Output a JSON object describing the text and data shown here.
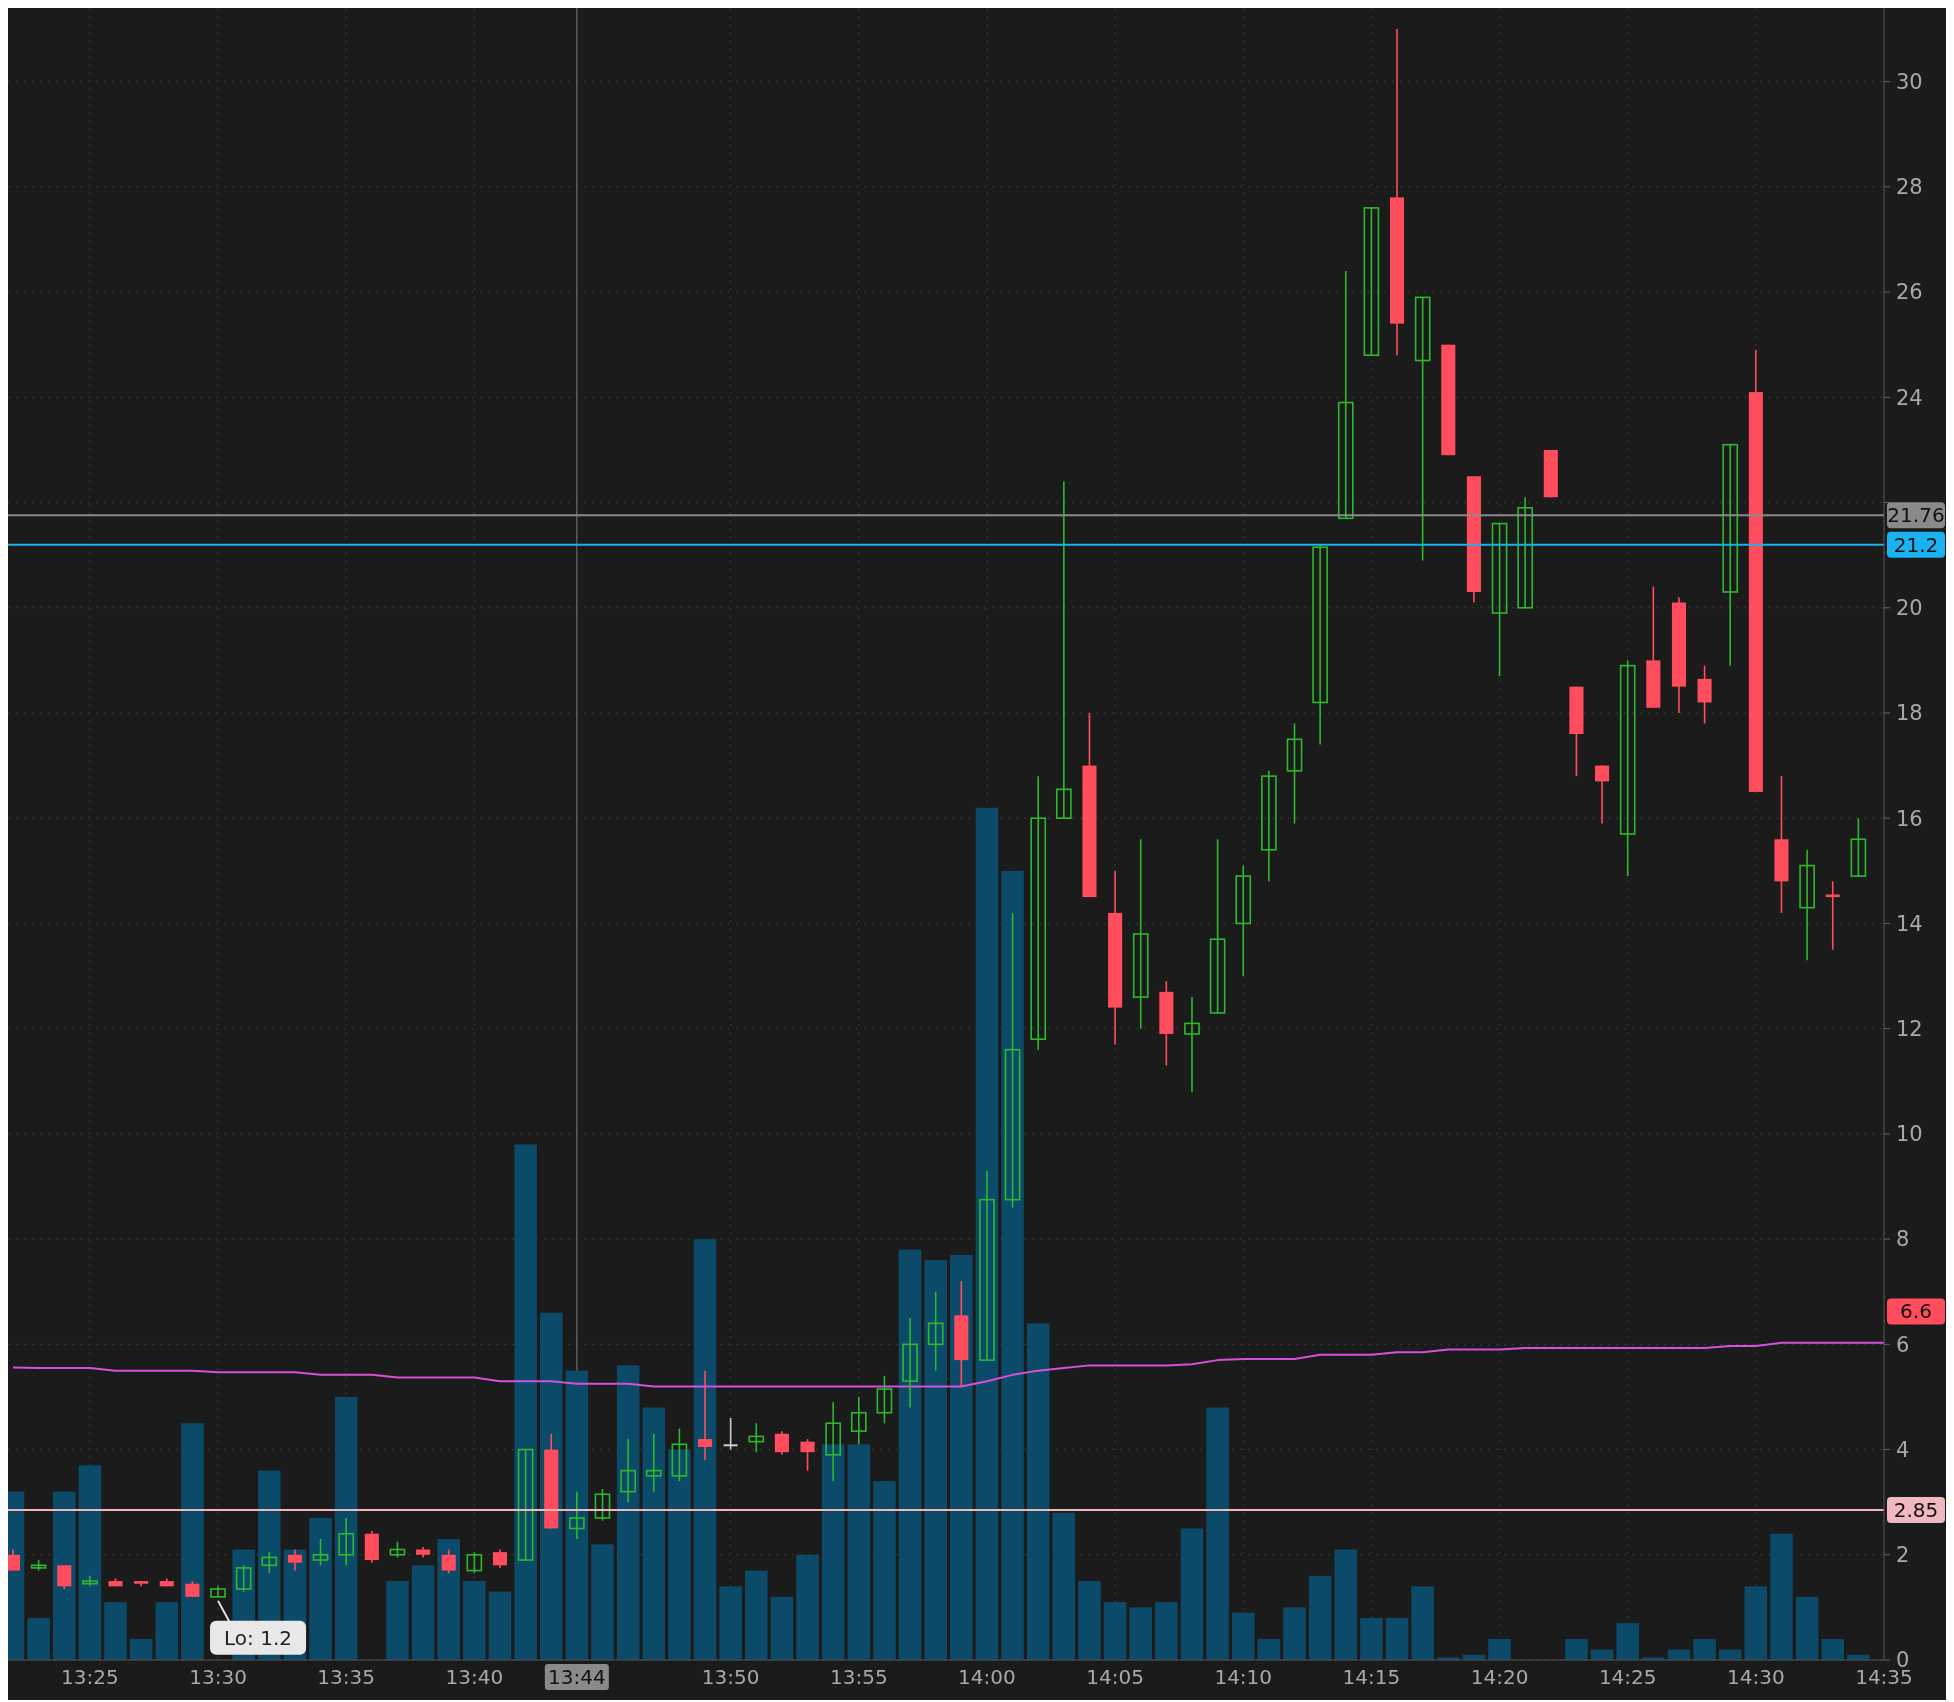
{
  "chart_data": {
    "type": "candlestick",
    "categories": [
      null,
      null,
      null,
      "13:25",
      null,
      null,
      null,
      null,
      "13:30",
      null,
      null,
      null,
      null,
      "13:35",
      null,
      null,
      null,
      null,
      "13:40",
      null,
      null,
      null,
      "13:44",
      null,
      null,
      null,
      null,
      null,
      "13:50",
      null,
      null,
      null,
      null,
      "13:55",
      null,
      null,
      null,
      null,
      "14:00",
      null,
      null,
      null,
      null,
      "14:05",
      null,
      null,
      null,
      null,
      "14:10",
      null,
      null,
      null,
      null,
      "14:15",
      null,
      null,
      null,
      null,
      "14:20",
      null,
      null,
      null,
      null,
      "14:25",
      null,
      null,
      null,
      null,
      "14:30",
      null,
      null,
      null,
      null,
      "14:35"
    ],
    "series": [
      {
        "type": "bar",
        "color": "#0b4a68",
        "values": [
          3.2,
          0.8,
          3.2,
          3.7,
          1.1,
          0.4,
          1.1,
          4.5,
          null,
          2.1,
          3.6,
          2.1,
          2.7,
          5.0,
          null,
          1.5,
          1.8,
          2.3,
          1.5,
          1.3,
          9.8,
          6.6,
          5.5,
          2.2,
          5.6,
          4.8,
          4.0,
          8.0,
          1.4,
          1.7,
          1.2,
          2.0,
          4.1,
          4.1,
          3.4,
          7.8,
          7.6,
          7.7,
          16.2,
          15.0,
          6.4,
          2.8,
          1.5,
          1.1,
          1.0,
          1.1,
          2.5,
          4.8,
          0.9,
          0.4,
          1.0,
          1.6,
          2.1,
          0.8,
          0.8,
          1.4,
          0.05,
          0.1,
          0.4,
          null,
          null,
          0.4,
          0.2,
          0.7,
          0.05,
          0.2,
          0.4,
          0.2,
          1.4,
          2.4,
          1.2,
          0.4,
          0.1,
          null
        ]
      },
      {
        "type": "line",
        "color": "#d94fd9",
        "values": [
          5.56,
          5.55,
          5.55,
          5.55,
          5.5,
          5.5,
          5.5,
          5.5,
          5.47,
          5.47,
          5.47,
          5.47,
          5.42,
          5.42,
          5.42,
          5.37,
          5.37,
          5.37,
          5.37,
          5.3,
          5.3,
          5.3,
          5.25,
          5.25,
          5.25,
          5.2,
          5.2,
          5.2,
          5.2,
          5.2,
          5.2,
          5.2,
          5.2,
          5.2,
          5.2,
          5.2,
          5.2,
          5.2,
          5.3,
          5.42,
          5.5,
          5.55,
          5.6,
          5.6,
          5.6,
          5.6,
          5.62,
          5.7,
          5.72,
          5.72,
          5.72,
          5.8,
          5.8,
          5.8,
          5.85,
          5.85,
          5.9,
          5.9,
          5.9,
          5.93,
          5.93,
          5.93,
          5.93,
          5.93,
          5.93,
          5.93,
          5.93,
          5.97,
          5.97,
          6.03,
          6.03,
          6.03,
          6.03,
          6.03
        ]
      },
      {
        "ohlc": [
          [
            2.0,
            2.1,
            1.7,
            1.7
          ],
          [
            1.75,
            1.9,
            1.7,
            1.8
          ],
          [
            1.8,
            1.8,
            1.35,
            1.4
          ],
          [
            1.45,
            1.6,
            1.4,
            1.5
          ],
          [
            1.5,
            1.55,
            1.4,
            1.4
          ],
          [
            1.5,
            1.5,
            1.4,
            1.45
          ],
          [
            1.5,
            1.55,
            1.4,
            1.4
          ],
          [
            1.45,
            1.5,
            1.2,
            1.2
          ],
          [
            1.2,
            1.4,
            1.2,
            1.35
          ],
          [
            1.35,
            1.8,
            1.3,
            1.75
          ],
          [
            1.8,
            2.05,
            1.65,
            1.95
          ],
          [
            2.0,
            2.1,
            1.7,
            1.85
          ],
          [
            1.9,
            2.3,
            1.8,
            2.0
          ],
          [
            2.0,
            2.7,
            1.8,
            2.4
          ],
          [
            2.4,
            2.45,
            1.85,
            1.9
          ],
          [
            2.0,
            2.25,
            1.95,
            2.1
          ],
          [
            2.1,
            2.15,
            1.95,
            2.0
          ],
          [
            2.0,
            2.1,
            1.65,
            1.7
          ],
          [
            1.7,
            2.05,
            1.65,
            2.0
          ],
          [
            2.05,
            2.1,
            1.75,
            1.8
          ],
          [
            1.9,
            4.0,
            1.9,
            4.0
          ],
          [
            4.0,
            4.3,
            2.5,
            2.5
          ],
          [
            2.5,
            3.2,
            2.3,
            2.7
          ],
          [
            2.7,
            3.25,
            2.65,
            3.15
          ],
          [
            3.2,
            4.2,
            3.0,
            3.6
          ],
          [
            3.5,
            4.3,
            3.2,
            3.6
          ],
          [
            3.5,
            4.4,
            3.4,
            4.1
          ],
          [
            4.2,
            5.5,
            3.8,
            4.05
          ],
          [
            4.1,
            4.6,
            4.0,
            4.1
          ],
          [
            4.15,
            4.5,
            3.95,
            4.25
          ],
          [
            4.3,
            4.35,
            3.9,
            3.95
          ],
          [
            4.15,
            4.2,
            3.6,
            3.95
          ],
          [
            3.9,
            4.9,
            3.4,
            4.5
          ],
          [
            4.35,
            5.0,
            4.1,
            4.7
          ],
          [
            4.7,
            5.4,
            4.5,
            5.15
          ],
          [
            5.3,
            6.5,
            4.8,
            6.0
          ],
          [
            6.0,
            7.0,
            5.5,
            6.4
          ],
          [
            6.55,
            7.2,
            5.2,
            5.7
          ],
          [
            5.7,
            9.3,
            5.7,
            8.75
          ],
          [
            8.75,
            14.2,
            8.6,
            11.6
          ],
          [
            11.8,
            16.8,
            11.6,
            16.0
          ],
          [
            16.0,
            22.4,
            16.0,
            16.55
          ],
          [
            17.0,
            18.0,
            14.5,
            14.5
          ],
          [
            14.2,
            15.0,
            11.7,
            12.4
          ],
          [
            12.6,
            15.6,
            12.0,
            13.8
          ],
          [
            12.7,
            12.9,
            11.3,
            11.9
          ],
          [
            11.9,
            12.6,
            10.8,
            12.1
          ],
          [
            12.3,
            15.6,
            12.3,
            13.7
          ],
          [
            14.0,
            15.1,
            13.0,
            14.9
          ],
          [
            15.4,
            16.9,
            14.8,
            16.8
          ],
          [
            16.9,
            17.8,
            15.9,
            17.5
          ],
          [
            18.2,
            21.2,
            17.4,
            21.15
          ],
          [
            21.7,
            26.4,
            21.7,
            23.9
          ],
          [
            24.8,
            27.6,
            24.8,
            27.6
          ],
          [
            27.8,
            31.0,
            24.8,
            25.4
          ],
          [
            24.7,
            25.9,
            20.9,
            25.9
          ],
          [
            25.0,
            25.0,
            22.9,
            22.9
          ],
          [
            22.5,
            22.5,
            20.1,
            20.3
          ],
          [
            19.9,
            21.6,
            18.7,
            21.6
          ],
          [
            20.0,
            22.1,
            20.0,
            21.9
          ],
          [
            23.0,
            23.0,
            22.1,
            22.1
          ],
          [
            18.5,
            18.5,
            16.8,
            17.6
          ],
          [
            17.0,
            17.0,
            15.9,
            16.7
          ],
          [
            15.7,
            19.0,
            14.9,
            18.9
          ],
          [
            19.0,
            20.4,
            18.1,
            18.1
          ],
          [
            20.1,
            20.2,
            18.0,
            18.5
          ],
          [
            18.65,
            18.9,
            17.8,
            18.2
          ],
          [
            20.3,
            23.1,
            18.9,
            23.1
          ],
          [
            24.1,
            24.9,
            16.5,
            16.5
          ],
          [
            15.6,
            16.8,
            14.2,
            14.8
          ],
          [
            14.3,
            15.4,
            13.3,
            15.1
          ],
          [
            14.55,
            14.8,
            13.5,
            14.5
          ],
          [
            14.9,
            16.0,
            14.9,
            15.6
          ],
          null
        ],
        "colors": [
          "#ff4d5e",
          "#2db92d",
          "#ff4d5e",
          "#2db92d",
          "#ff4d5e",
          "#ff4d5e",
          "#ff4d5e",
          "#ff4d5e",
          "#2db92d",
          "#2db92d",
          "#2db92d",
          "#ff4d5e",
          "#2db92d",
          "#2db92d",
          "#ff4d5e",
          "#2db92d",
          "#ff4d5e",
          "#ff4d5e",
          "#2db92d",
          "#ff4d5e",
          "#2db92d",
          "#ff4d5e",
          "#2db92d",
          "#2db92d",
          "#2db92d",
          "#2db92d",
          "#2db92d",
          "#ff4d5e",
          "#cccccc",
          "#2db92d",
          "#ff4d5e",
          "#ff4d5e",
          "#2db92d",
          "#2db92d",
          "#2db92d",
          "#2db92d",
          "#2db92d",
          "#ff4d5e",
          "#2db92d",
          "#2db92d",
          "#2db92d",
          "#2db92d",
          "#ff4d5e",
          "#ff4d5e",
          "#2db92d",
          "#ff4d5e",
          "#2db92d",
          "#2db92d",
          "#2db92d",
          "#2db92d",
          "#2db92d",
          "#2db92d",
          "#2db92d",
          "#2db92d",
          "#ff4d5e",
          "#2db92d",
          "#ff4d5e",
          "#ff4d5e",
          "#2db92d",
          "#2db92d",
          "#ff4d5e",
          "#ff4d5e",
          "#ff4d5e",
          "#2db92d",
          "#ff4d5e",
          "#ff4d5e",
          "#ff4d5e",
          "#2db92d",
          "#ff4d5e",
          "#ff4d5e",
          "#2db92d",
          "#ff4d5e",
          "#2db92d",
          null
        ]
      }
    ],
    "ylim": [
      0,
      31.4
    ],
    "yticks": [
      0,
      2,
      4,
      6,
      8,
      10,
      12,
      14,
      16,
      18,
      20,
      {
        "value": 22,
        "label": null
      },
      24,
      26,
      28,
      30
    ],
    "grid": true,
    "ref_lines": [
      {
        "axis": "y",
        "value": 21.76,
        "label": "21.76",
        "color": "#8a8a8a"
      },
      {
        "axis": "y",
        "value": 21.2,
        "label": "21.2",
        "color": "#1ab2f0"
      },
      {
        "axis": "y",
        "value": 2.85,
        "label": "2.85",
        "color": "#f0b8c0"
      },
      {
        "axis": "x",
        "value": "13:44",
        "color": "#6a6a6a"
      }
    ],
    "annotations": [
      "6.6",
      {
        "text": "Lo: 1.2",
        "x": "13:30",
        "y": 1.2
      }
    ]
  }
}
